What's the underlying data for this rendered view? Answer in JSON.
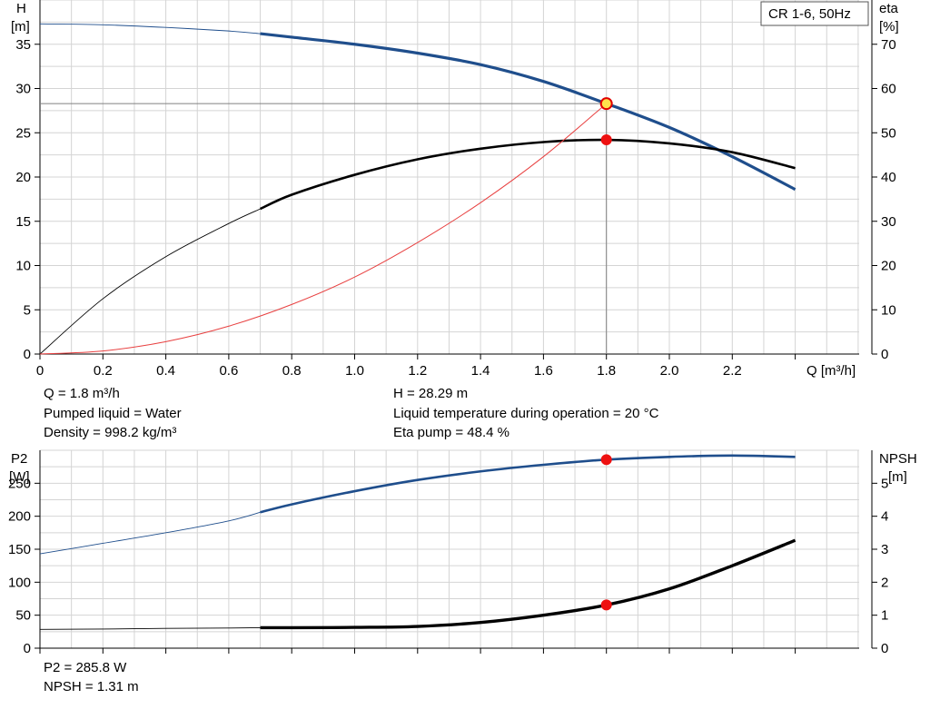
{
  "legend_box": "CR 1-6, 50Hz",
  "top_chart": {
    "left_axis": [
      "H",
      "[m]"
    ],
    "right_axis": [
      "eta",
      "[%]"
    ],
    "x_axis_label": "Q [m³/h]",
    "info_left": [
      "Q = 1.8 m³/h",
      "Pumped liquid = Water",
      "Density = 998.2 kg/m³"
    ],
    "info_right": [
      "H = 28.29 m",
      "Liquid temperature during operation = 20 °C",
      "Eta pump = 48.4 %"
    ]
  },
  "bottom_chart": {
    "left_axis": [
      "P2",
      "[W]"
    ],
    "right_axis": [
      "NPSH",
      "[m]"
    ],
    "info_left": [
      "P2 = 285.8 W",
      "NPSH = 1.31 m"
    ]
  },
  "chart_data": [
    {
      "type": "line",
      "x_ticks": [
        "0",
        "0.2",
        "0.4",
        "0.6",
        "0.8",
        "1.0",
        "1.2",
        "1.4",
        "1.6",
        "1.8",
        "2.0",
        "2.2"
      ],
      "xlim": [
        0,
        2.6
      ],
      "ylim": [
        0,
        40
      ],
      "y_ticks": [
        0,
        5,
        10,
        15,
        20,
        25,
        30,
        35
      ],
      "y2lim": [
        0,
        80
      ],
      "y2_ticks": [
        0,
        10,
        20,
        30,
        40,
        50,
        60,
        70
      ],
      "series": [
        {
          "name": "H",
          "axis": "left",
          "color": "#1f4e8c",
          "x": [
            0,
            0.2,
            0.4,
            0.6,
            0.7,
            0.8,
            1.0,
            1.2,
            1.4,
            1.6,
            1.8,
            2.0,
            2.2,
            2.4
          ],
          "y": [
            37.3,
            37.2,
            36.9,
            36.5,
            36.2,
            35.8,
            35.0,
            34.0,
            32.7,
            30.8,
            28.3,
            25.6,
            22.3,
            18.6
          ]
        },
        {
          "name": "eta",
          "axis": "right",
          "color": "#000000",
          "x": [
            0,
            0.2,
            0.4,
            0.6,
            0.7,
            0.8,
            1.0,
            1.2,
            1.4,
            1.6,
            1.8,
            2.0,
            2.2,
            2.4
          ],
          "y": [
            0,
            12.5,
            22.0,
            29.5,
            32.8,
            36.0,
            40.5,
            44.0,
            46.4,
            47.9,
            48.4,
            47.6,
            45.6,
            42.0
          ]
        },
        {
          "name": "system curve",
          "axis": "left",
          "color": "#e84040",
          "x": [
            0,
            0.2,
            0.4,
            0.6,
            0.8,
            1.0,
            1.2,
            1.4,
            1.6,
            1.8
          ],
          "y": [
            0,
            0.35,
            1.4,
            3.15,
            5.6,
            8.7,
            12.6,
            17.1,
            22.3,
            28.3
          ]
        }
      ],
      "markers": [
        {
          "name": "duty-point-H",
          "x": 1.8,
          "y": 28.29,
          "axis": "left"
        },
        {
          "name": "duty-point-eta",
          "x": 1.8,
          "y": 48.4,
          "axis": "right"
        }
      ]
    },
    {
      "type": "line",
      "x_ticks": [],
      "xlim": [
        0,
        2.6
      ],
      "ylim": [
        0,
        300
      ],
      "y_ticks": [
        0,
        50,
        100,
        150,
        200,
        250
      ],
      "y2lim": [
        0,
        6
      ],
      "y2_ticks": [
        0,
        1,
        2,
        3,
        4,
        5
      ],
      "series": [
        {
          "name": "P2",
          "axis": "left",
          "color": "#1f4e8c",
          "x": [
            0,
            0.2,
            0.4,
            0.6,
            0.7,
            0.8,
            1.0,
            1.2,
            1.4,
            1.6,
            1.8,
            2.0,
            2.2,
            2.4
          ],
          "y": [
            143,
            159,
            175,
            193,
            206,
            218,
            238,
            255,
            268,
            278,
            285.8,
            290,
            292,
            290
          ]
        },
        {
          "name": "NPSH",
          "axis": "right",
          "color": "#000000",
          "x": [
            0,
            0.2,
            0.4,
            0.6,
            0.7,
            0.8,
            1.0,
            1.2,
            1.4,
            1.6,
            1.8,
            2.0,
            2.2,
            2.4
          ],
          "y": [
            0.57,
            0.58,
            0.6,
            0.61,
            0.62,
            0.62,
            0.63,
            0.66,
            0.78,
            1.0,
            1.31,
            1.8,
            2.5,
            3.27
          ]
        }
      ],
      "markers": [
        {
          "name": "duty-point-P2",
          "x": 1.8,
          "y": 285.8,
          "axis": "left"
        },
        {
          "name": "duty-point-NPSH",
          "x": 1.8,
          "y": 1.31,
          "axis": "right"
        }
      ]
    }
  ]
}
